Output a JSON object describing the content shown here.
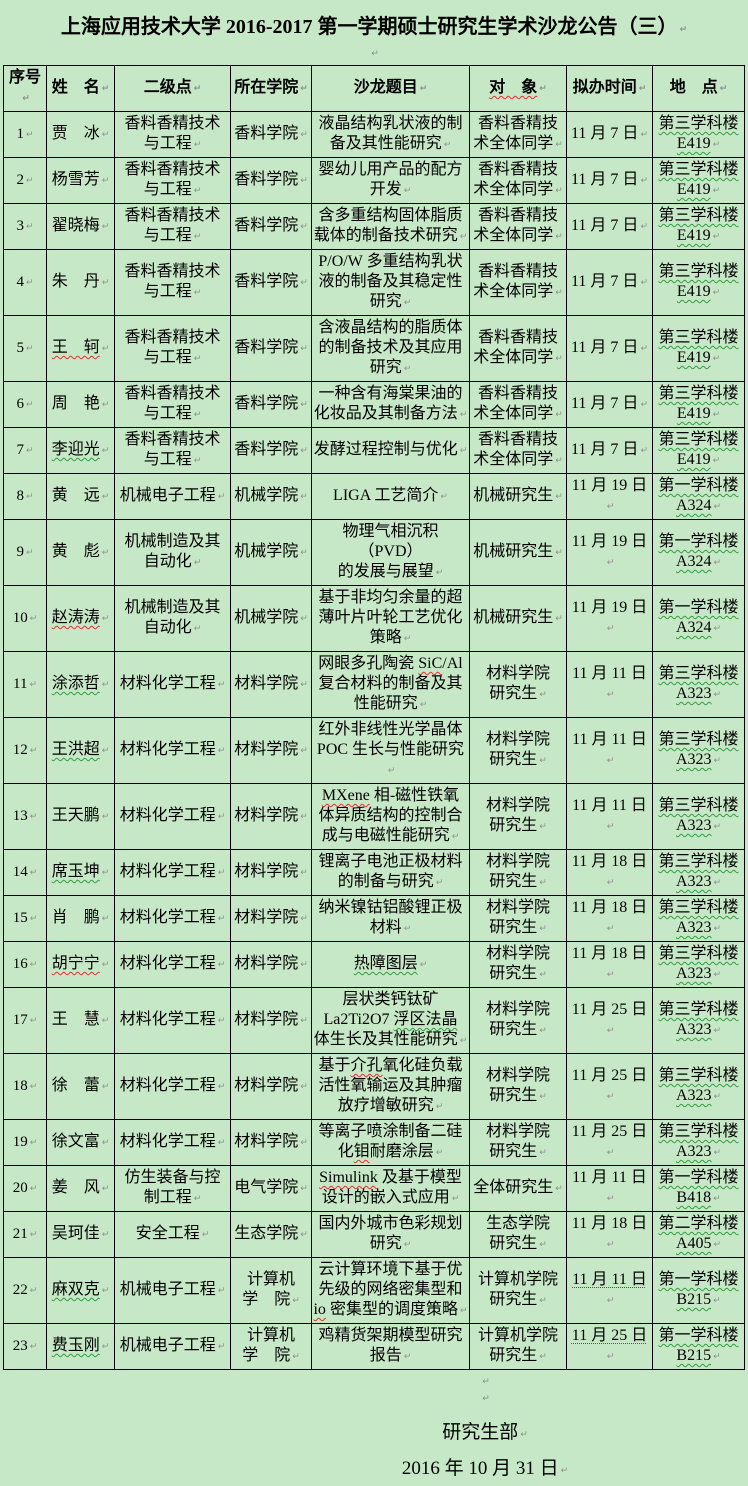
{
  "page": {
    "title": "上海应用技术大学 2016-2017 第一学期硕士研究生学术沙龙公告（三）",
    "footer": {
      "signature": "研究生部",
      "date": "2016 年 10 月 31 日"
    }
  },
  "colors": {
    "page_background": "#c7e8c7",
    "table_border": "#000000",
    "spellcheck_green": "#2f9e3f",
    "spellcheck_red": "#e03232",
    "smarttag_purple": "#8a2b9a"
  },
  "table": {
    "headers": [
      "序号",
      "姓　名",
      "二级点",
      "所在学院",
      "沙龙题目",
      "对　象",
      "拟办时间",
      "地　点"
    ],
    "header_marks": {
      "5": "red"
    },
    "rows": [
      {
        "no": "1",
        "name": "贾　冰",
        "discipline": "香料香精技术\n与工程",
        "college": "香料学院",
        "topic": "液晶结构乳状液的制\n备及其性能研究",
        "audience": "香料香精技\n术全体同学",
        "time": "11 月 7 日",
        "location": "第三学科楼\nE419"
      },
      {
        "no": "2",
        "name": "杨雪芳",
        "discipline": "香料香精技术\n与工程",
        "college": "香料学院",
        "topic": "婴幼儿用产品的配方\n开发",
        "audience": "香料香精技\n术全体同学",
        "time": "11 月 7 日",
        "location": "第三学科楼\nE419"
      },
      {
        "no": "3",
        "name": "翟晓梅",
        "discipline": "香料香精技术\n与工程",
        "college": "香料学院",
        "topic": "含多重结构固体脂质\n载体的制备技术研究",
        "audience": "香料香精技\n术全体同学",
        "time": "11 月 7 日",
        "location": "第三学科楼\nE419"
      },
      {
        "no": "4",
        "name": "朱　丹",
        "discipline": "香料香精技术\n与工程",
        "college": "香料学院",
        "topic": "P/O/W 多重结构乳状\n液的制备及其稳定性\n研究",
        "audience": "香料香精技\n术全体同学",
        "time": "11 月 7 日",
        "location": "第三学科楼\nE419"
      },
      {
        "no": "5",
        "name": "王　轲",
        "name_mark": "red",
        "discipline": "香料香精技术\n与工程",
        "college": "香料学院",
        "topic": "含液晶结构的脂质体\n的制备技术及其应用\n研究",
        "audience": "香料香精技\n术全体同学",
        "time": "11 月 7 日",
        "location": "第三学科楼\nE419"
      },
      {
        "no": "6",
        "name": "周　艳",
        "discipline": "香料香精技术\n与工程",
        "college": "香料学院",
        "topic": "一种含有海棠果油的\n化妆品及其制备方法",
        "audience": "香料香精技\n术全体同学",
        "time": "11 月 7 日",
        "location": "第三学科楼\nE419"
      },
      {
        "no": "7",
        "name": "李迎光",
        "name_mark": "green",
        "discipline": "香料香精技术\n与工程",
        "college": "香料学院",
        "topic": "发酵过程控制与优化",
        "audience": "香料香精技\n术全体同学",
        "time": "11 月 7 日",
        "location": "第三学科楼\nE419"
      },
      {
        "no": "8",
        "name": "黄　远",
        "discipline": "机械电子工程",
        "college": "机械学院",
        "topic": "LIGA 工艺简介",
        "audience": "机械研究生",
        "time": "11 月 19 日",
        "location": "第一学科楼\nA324"
      },
      {
        "no": "9",
        "name": "黄　彪",
        "discipline": "机械制造及其\n自动化",
        "college": "机械学院",
        "topic": "物理气相沉积（PVD）\n的发展与展望",
        "audience": "机械研究生",
        "time": "11 月 19 日",
        "location": "第一学科楼\nA324"
      },
      {
        "no": "10",
        "name": "赵涛涛",
        "name_mark": "red",
        "discipline": "机械制造及其\n自动化",
        "college": "机械学院",
        "topic": "基于非均匀余量的超\n薄叶片叶轮工艺优化\n策略",
        "audience": "机械研究生",
        "time": "11 月 19 日",
        "location": "第一学科楼\nA324"
      },
      {
        "no": "11",
        "name": "涂添哲",
        "name_mark": "green",
        "discipline": "材料化学工程",
        "college": "材料学院",
        "topic": "网眼多孔陶瓷 SiC/Al\n复合材料的制备及其\n性能研究",
        "topic_marks": [
          {
            "text": "SiC",
            "mark": "red"
          }
        ],
        "audience": "材料学院\n研究生",
        "time": "11 月 11 日",
        "location": "第三学科楼\nA323"
      },
      {
        "no": "12",
        "name": "王洪超",
        "name_mark": "green",
        "discipline": "材料化学工程",
        "college": "材料学院",
        "topic": "红外非线性光学晶体\nPOC 生长与性能研究",
        "audience": "材料学院\n研究生",
        "time": "11 月 11 日",
        "location": "第三学科楼\nA323"
      },
      {
        "no": "13",
        "name": "王天鹏",
        "discipline": "材料化学工程",
        "college": "材料学院",
        "topic": "MXene 相-磁性铁氧\n体异质结构的控制合\n成与电磁性能研究",
        "topic_marks": [
          {
            "text": "MXene",
            "mark": "red"
          }
        ],
        "audience": "材料学院\n研究生",
        "time": "11 月 11 日",
        "location": "第三学科楼\nA323"
      },
      {
        "no": "14",
        "name": "席玉坤",
        "name_mark": "green",
        "discipline": "材料化学工程",
        "college": "材料学院",
        "topic": "锂离子电池正极材料\n的制备与研究",
        "audience": "材料学院\n研究生",
        "time": "11 月 18 日",
        "location": "第三学科楼\nA323"
      },
      {
        "no": "15",
        "name": "肖　鹏",
        "discipline": "材料化学工程",
        "college": "材料学院",
        "topic": "纳米镍钴铝酸锂正极\n材料",
        "audience": "材料学院\n研究生",
        "time": "11 月 18 日",
        "location": "第三学科楼\nA323"
      },
      {
        "no": "16",
        "name": "胡宁宁",
        "name_mark": "red",
        "discipline": "材料化学工程",
        "college": "材料学院",
        "topic": "热障图层",
        "topic_marks": [
          {
            "text": "热障图层",
            "mark": "green"
          }
        ],
        "audience": "材料学院\n研究生",
        "time": "11 月 18 日",
        "location": "第三学科楼\nA323"
      },
      {
        "no": "17",
        "name": "王　慧",
        "discipline": "材料化学工程",
        "college": "材料学院",
        "topic": "层状类钙钛矿\nLa2Ti2O7 浮区法晶\n体生长及其性能研究",
        "topic_marks": [
          {
            "text": "浮区法晶",
            "mark": "green"
          }
        ],
        "audience": "材料学院\n研究生",
        "time": "11 月 25 日",
        "location": "第三学科楼\nA323"
      },
      {
        "no": "18",
        "name": "徐　蕾",
        "discipline": "材料化学工程",
        "college": "材料学院",
        "topic": "基于介孔氧化硅负载\n活性氧输运及其肿瘤\n放疗增敏研究",
        "topic_marks": [
          {
            "text": "介孔",
            "mark": "red"
          }
        ],
        "audience": "材料学院\n研究生",
        "time": "11 月 25 日",
        "location": "第三学科楼\nA323"
      },
      {
        "no": "19",
        "name": "徐文富",
        "discipline": "材料化学工程",
        "college": "材料学院",
        "topic": "等离子喷涂制备二硅\n化钼耐磨涂层",
        "topic_marks": [
          {
            "text": "钼",
            "mark": "red"
          }
        ],
        "audience": "材料学院\n研究生",
        "time": "11 月 25 日",
        "location": "第三学科楼\nA323"
      },
      {
        "no": "20",
        "name": "姜　风",
        "discipline": "仿生装备与控\n制工程",
        "college": "电气学院",
        "topic": "Simulink 及基于模型\n设计的嵌入式应用",
        "topic_marks": [
          {
            "text": "Simulink",
            "mark": "red"
          }
        ],
        "audience": "全体研究生",
        "time": "11 月 11 日",
        "location": "第一学科楼\nB418"
      },
      {
        "no": "21",
        "name": "吴珂佳",
        "discipline": "安全工程",
        "college": "生态学院",
        "topic": "国内外城市色彩规划\n研究",
        "audience": "生态学院\n研究生",
        "time": "11 月 18 日",
        "location": "第二学科楼\nA405"
      },
      {
        "no": "22",
        "name": "麻双克",
        "name_mark": "green",
        "discipline": "机械电子工程",
        "college": "计算机\n学　院",
        "topic": "云计算环境下基于优\n先级的网络密集型和\nio 密集型的调度策略",
        "topic_marks": [
          {
            "text": "io",
            "mark": "red"
          }
        ],
        "audience": "计算机学院\n研究生",
        "time": "11 月 11 日",
        "time_mark": "purple",
        "location": "第一学科楼\nB215"
      },
      {
        "no": "23",
        "name": "费玉刚",
        "name_mark": "green",
        "discipline": "机械电子工程",
        "college": "计算机\n学　院",
        "topic": "鸡精货架期模型研究\n报告",
        "audience": "计算机学院\n研究生",
        "time": "11 月 25 日",
        "time_mark": "purple",
        "location": "第一学科楼\nB215"
      }
    ]
  }
}
